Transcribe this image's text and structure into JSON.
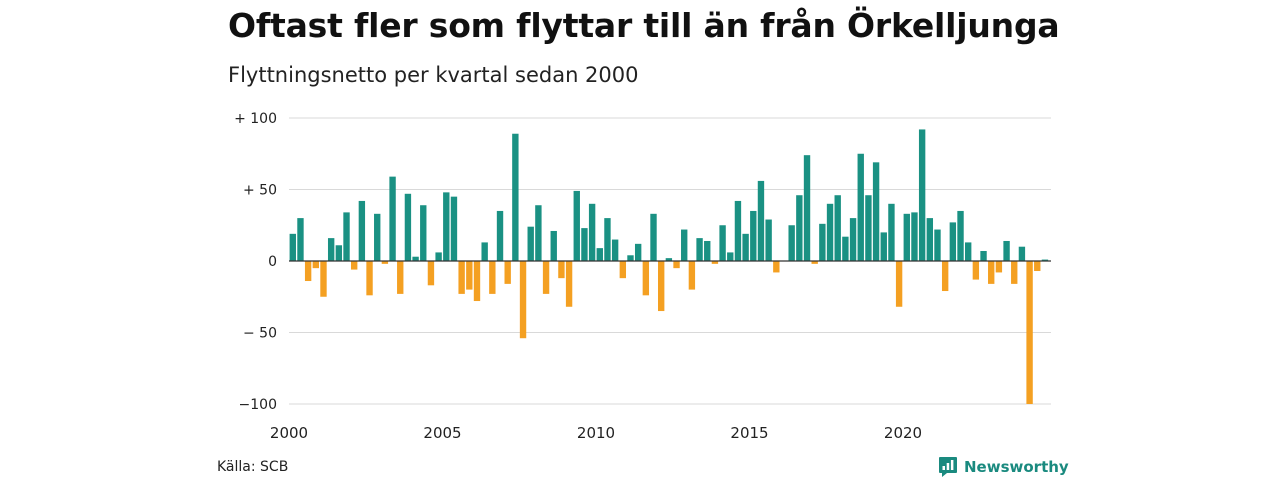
{
  "title": "Oftast fler som flyttar till än från Örkelljunga",
  "subtitle": "Flyttningsnetto per kvartal sedan 2000",
  "source": "Källa: SCB",
  "brand": {
    "name": "Newsworthy",
    "icon": "newsworthy-logo-icon"
  },
  "colors": {
    "positive": "#1a9183",
    "negative": "#f4a022",
    "grid": "#d9d9d9",
    "axis": "#333333"
  },
  "chart_data": {
    "type": "bar",
    "title": "Oftast fler som flyttar till än från Örkelljunga",
    "subtitle": "Flyttningsnetto per kvartal sedan 2000",
    "ylim": [
      -100,
      100
    ],
    "y_ticks": [
      100,
      50,
      0,
      -50,
      -100
    ],
    "y_tick_labels": [
      "+ 100",
      "+  50",
      "0",
      "− 50",
      "−100"
    ],
    "x_ticks": [
      2000,
      2005,
      2010,
      2015,
      2020
    ],
    "x_tick_labels": [
      "2000",
      "2005",
      "2010",
      "2015",
      "2020"
    ],
    "grid": true,
    "quarters_start": "2000Q1",
    "values": [
      19,
      30,
      -14,
      -5,
      -25,
      16,
      11,
      34,
      -6,
      42,
      -24,
      33,
      -2,
      59,
      -23,
      47,
      3,
      39,
      -17,
      6,
      48,
      45,
      -23,
      -20,
      -28,
      13,
      -23,
      35,
      -16,
      89,
      -54,
      24,
      39,
      -23,
      21,
      -12,
      -32,
      49,
      23,
      40,
      9,
      30,
      15,
      -12,
      4,
      12,
      -24,
      33,
      -35,
      2,
      -5,
      22,
      -20,
      16,
      14,
      -2,
      25,
      6,
      42,
      19,
      35,
      56,
      29,
      -8,
      0,
      25,
      46,
      74,
      -2,
      26,
      40,
      46,
      17,
      30,
      75,
      46,
      69,
      20,
      40,
      -32,
      33,
      34,
      92,
      30,
      22,
      -21,
      27,
      35,
      13,
      -13,
      7,
      -16,
      -8,
      14,
      -16,
      10,
      -100,
      -7,
      1
    ]
  }
}
